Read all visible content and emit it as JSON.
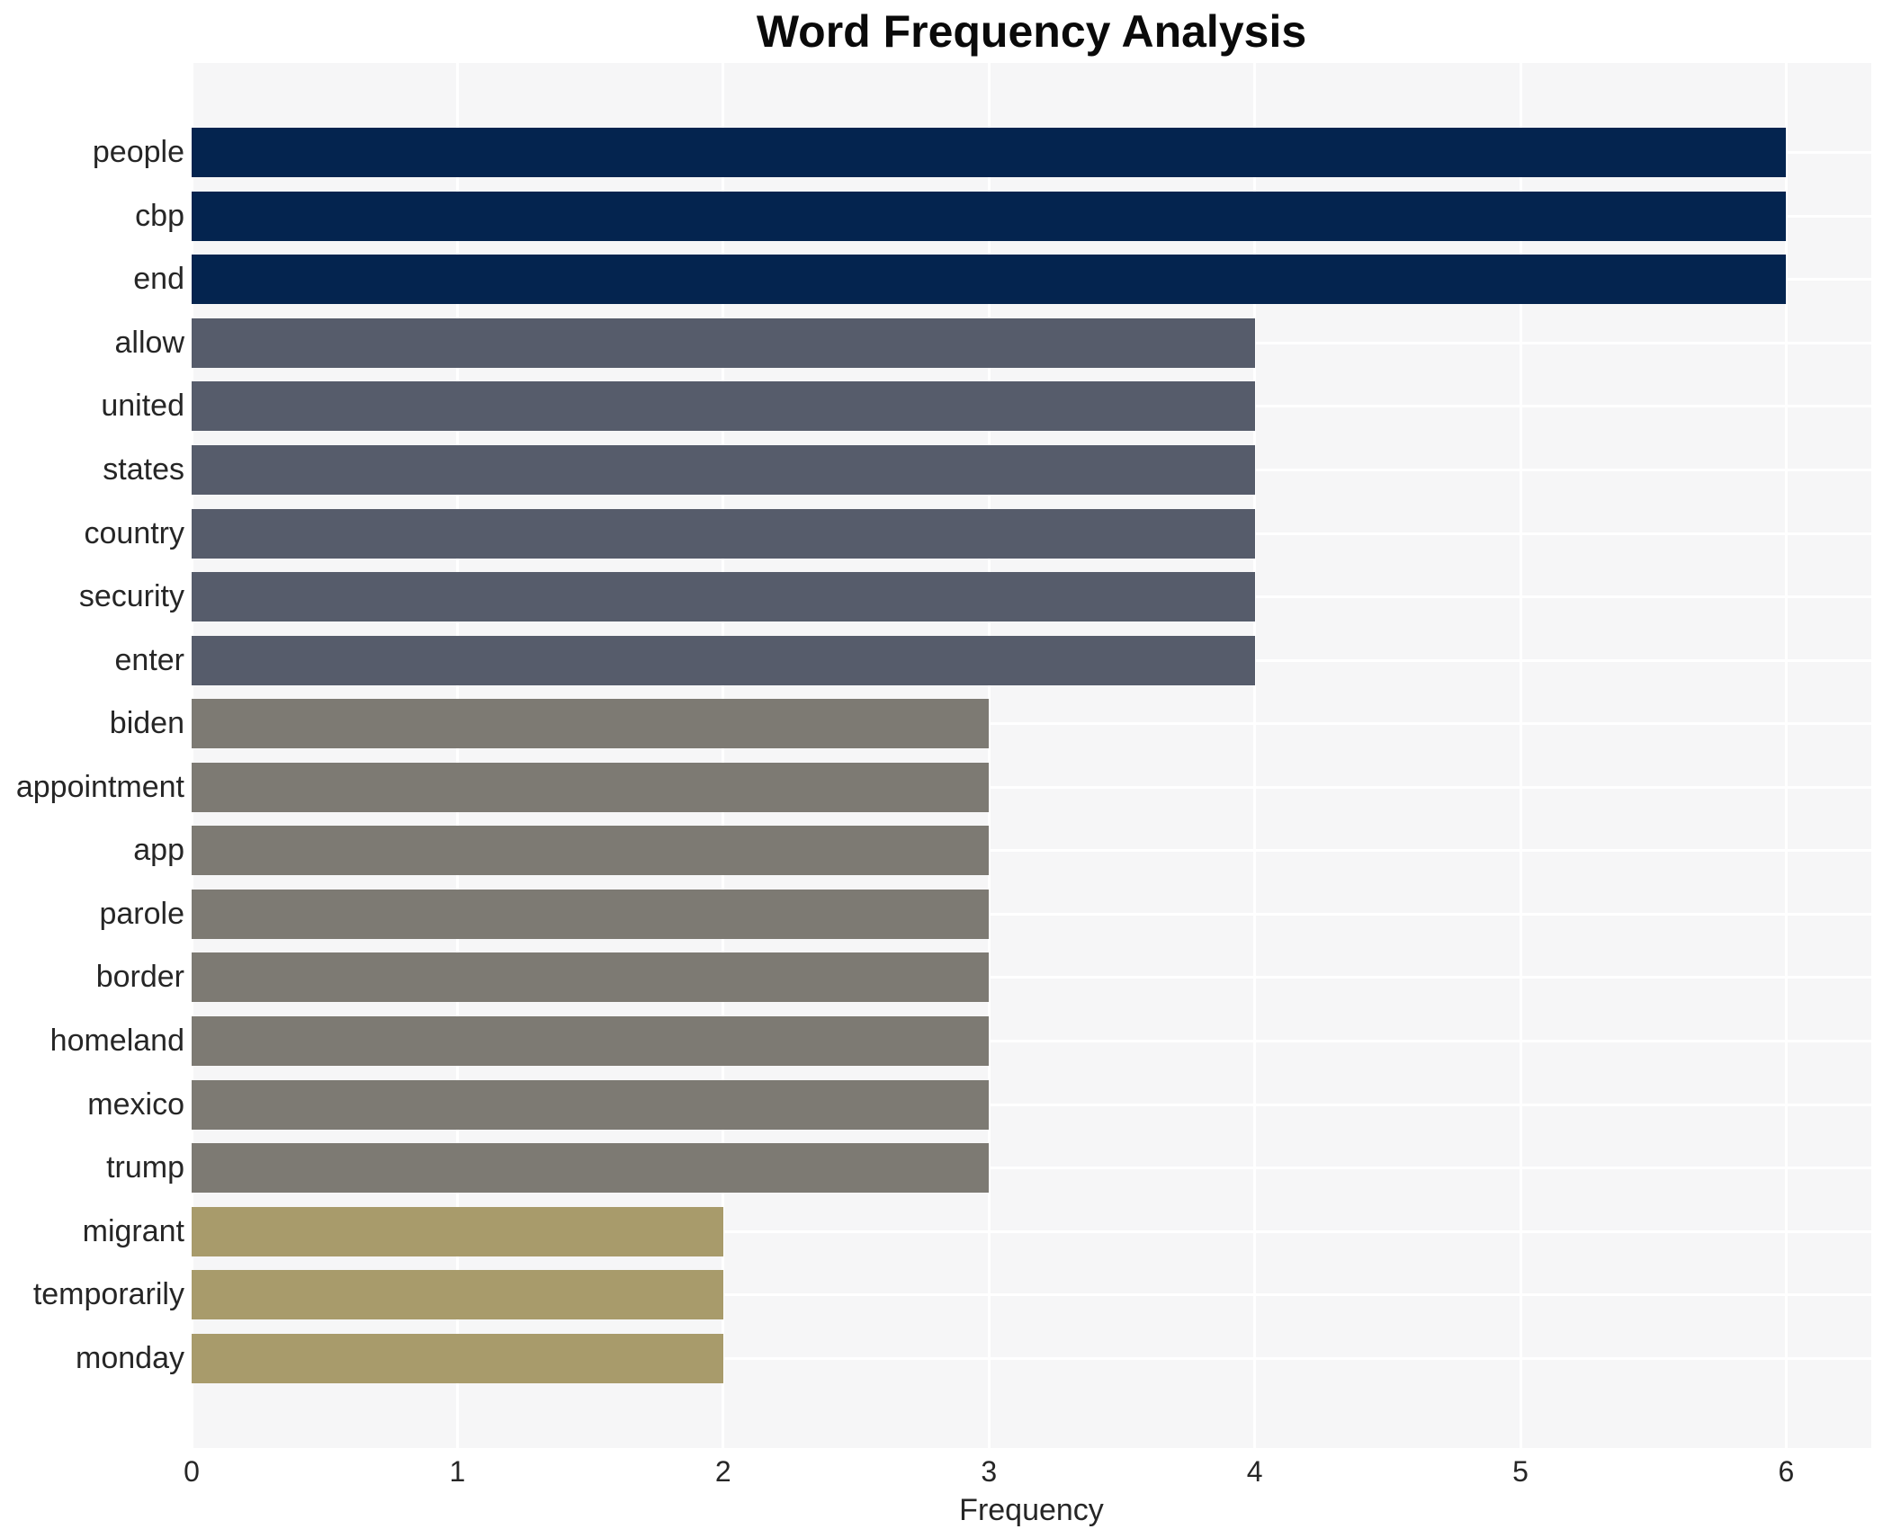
{
  "chart_data": {
    "type": "bar",
    "orientation": "horizontal",
    "title": "Word Frequency Analysis",
    "xlabel": "Frequency",
    "ylabel": "",
    "categories": [
      "people",
      "cbp",
      "end",
      "allow",
      "united",
      "states",
      "country",
      "security",
      "enter",
      "biden",
      "appointment",
      "app",
      "parole",
      "border",
      "homeland",
      "mexico",
      "trump",
      "migrant",
      "temporarily",
      "monday"
    ],
    "values": [
      6,
      6,
      6,
      4,
      4,
      4,
      4,
      4,
      4,
      3,
      3,
      3,
      3,
      3,
      3,
      3,
      3,
      2,
      2,
      2
    ],
    "bar_colors": [
      "#04244f",
      "#04244f",
      "#04244f",
      "#565c6b",
      "#565c6b",
      "#565c6b",
      "#565c6b",
      "#565c6b",
      "#565c6b",
      "#7d7a73",
      "#7d7a73",
      "#7d7a73",
      "#7d7a73",
      "#7d7a73",
      "#7d7a73",
      "#7d7a73",
      "#7d7a73",
      "#a89b6b",
      "#a89b6b",
      "#a89b6b"
    ],
    "xlim": [
      0,
      6.32
    ],
    "xticks": [
      0,
      1,
      2,
      3,
      4,
      5,
      6
    ],
    "grid": true,
    "legend_position": "none",
    "panel_bg_color": "#f6f6f7",
    "grid_color": "#ffffff",
    "text_color": "#262626",
    "title_color": "#0a0a0a"
  }
}
